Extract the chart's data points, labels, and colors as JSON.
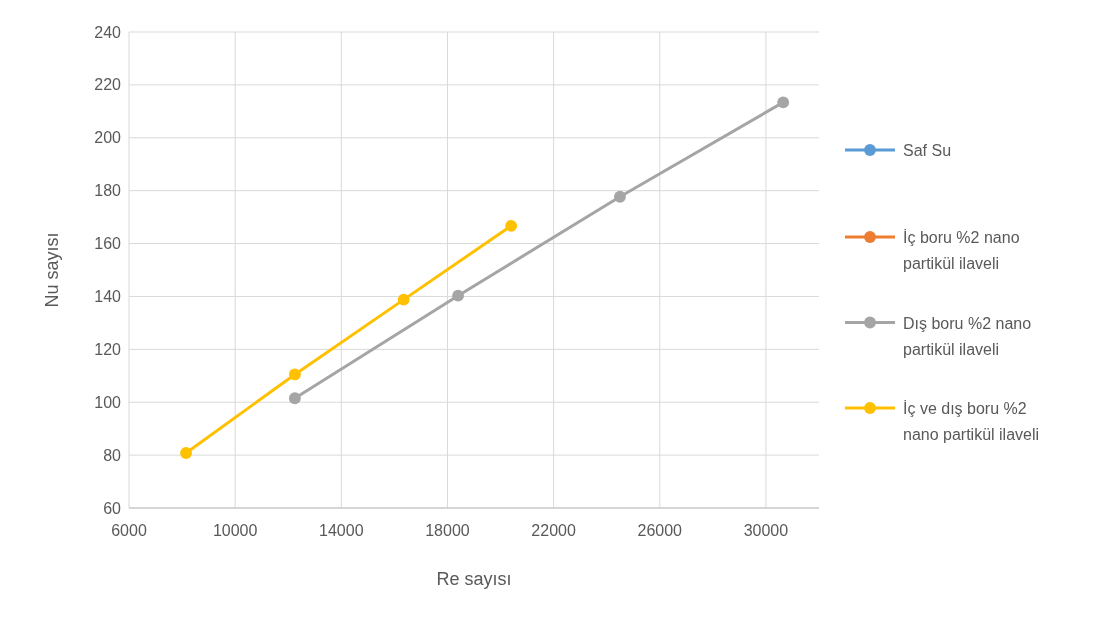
{
  "chart_data": {
    "type": "line",
    "xlabel": "Re sayısı",
    "ylabel": "Nu sayısı",
    "xlim": [
      6000,
      32000
    ],
    "xticks": [
      6000,
      10000,
      14000,
      18000,
      22000,
      26000,
      30000
    ],
    "ylim": [
      60,
      240
    ],
    "yticks": [
      60,
      80,
      100,
      120,
      140,
      160,
      180,
      200,
      220,
      240
    ],
    "grid": true,
    "legend": "right",
    "marker": "circle",
    "line_style": "solid",
    "series": [
      {
        "name": "Saf Su",
        "color": "#5b9bd5"
      },
      {
        "name": "İç boru %2 nano partikül ilaveli",
        "color": "#ed7d31"
      },
      {
        "name": "Dış boru %2 nano partikül ilaveli",
        "color": "#a5a5a5",
        "x": [
          12250,
          18400,
          24500,
          30650
        ],
        "values": [
          101.5,
          140.3,
          177.7,
          213.4
        ]
      },
      {
        "name": "İç ve dış boru %2 nano partikül ilaveli",
        "color": "#ffc000",
        "x": [
          8150,
          12250,
          16350,
          20400
        ],
        "values": [
          80.8,
          110.5,
          138.8,
          166.7
        ]
      }
    ]
  }
}
